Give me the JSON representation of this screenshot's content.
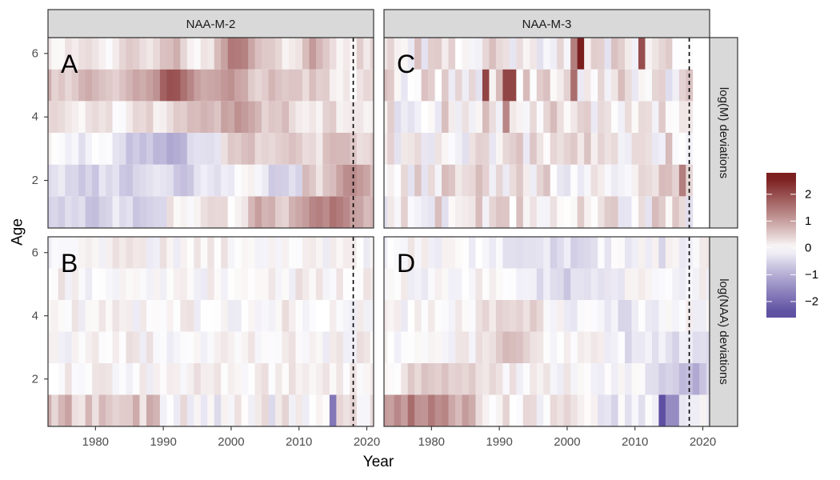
{
  "chart_data": {
    "type": "heatmap",
    "title": "",
    "xlabel": "Year",
    "ylabel": "Age",
    "year_range": [
      1973,
      2021
    ],
    "ages": [
      1,
      2,
      3,
      4,
      5,
      6
    ],
    "x_ticks": [
      1980,
      1990,
      2000,
      2010,
      2020
    ],
    "y_ticks": [
      2,
      4,
      6
    ],
    "terminal_year_line": 2018,
    "columns": [
      "NAA-M-2",
      "NAA-M-3"
    ],
    "rows": [
      "log(M) deviations",
      "log(NAA) deviations"
    ],
    "panels": [
      {
        "tag": "A",
        "column": "NAA-M-2",
        "row": "log(M) deviations",
        "pattern": "smooth",
        "approx_values_by_age": {
          "1": "mostly -0.5 (1973-1990) rising to +0.5..+1.8 after 2003",
          "2": "-0.5 (1980-1995), near 0 mid, +1 to +1.7 after 2012",
          "3": "-0.5 to -1 around 1985-1995, +0.5 after 2000",
          "4": "0 to +0.5 early, +0.8 to +1 around 1995-2005",
          "5": "+0.5 to +1.5, peak about +2 near 1990-1992",
          "6": "+0.3 to +1, peak about +1.8 near 2000-2002"
        }
      },
      {
        "tag": "C",
        "column": "NAA-M-3",
        "row": "log(M) deviations",
        "pattern": "noisy",
        "approx_values_by_age": {
          "1": "noise within -0.5..+1",
          "2": "noise within -0.5..+1.3",
          "3": "noise within -0.5..+1",
          "4": "noise within -0.5..+1",
          "5": "noise, peaks about +2 near 1988 and 1991-1993",
          "6": "noise, peaks about +2.5 near 2002 and +2 near 2011"
        }
      },
      {
        "tag": "B",
        "column": "NAA-M-2",
        "row": "log(NAA) deviations",
        "pattern": "noisy",
        "approx_values_by_age": {
          "1": "+0.5..+1 before 1990, noise after, dip about -1.8 near 2015",
          "2": "noise within -0.3..+0.5",
          "3": "noise within -0.3..+0.3",
          "4": "noise within -0.3..+0.5",
          "5": "noise within -0.3..+0.3",
          "6": "noise within -0.3..+0.3"
        }
      },
      {
        "tag": "D",
        "column": "NAA-M-3",
        "row": "log(NAA) deviations",
        "pattern": "mixed",
        "approx_values_by_age": {
          "1": "+0.8..+1.5 around 1975-1985, near -2.5 at 2014-2016",
          "2": "+0.5 around 1975-1990, -0.5..-1 after 2012",
          "3": "+0.5 around 1988-1995, -0.5 after 2010",
          "4": "+0.5 around 1988-1995",
          "5": "-0.3..-0.6 around 1995-2005",
          "6": "-0.3..-0.5 around 1995-2005"
        }
      }
    ],
    "legend": {
      "type": "colorbar",
      "placement": "right",
      "ticks": [
        2,
        1,
        0,
        -1,
        -2
      ],
      "range": [
        -2.6,
        2.8
      ],
      "colors": {
        "low": "#5e4fa2",
        "mid": "#ffffff",
        "high": "#7b1e1e"
      }
    }
  },
  "strip_colors": {
    "fill": "#d9d9d9",
    "border": "#333333"
  }
}
